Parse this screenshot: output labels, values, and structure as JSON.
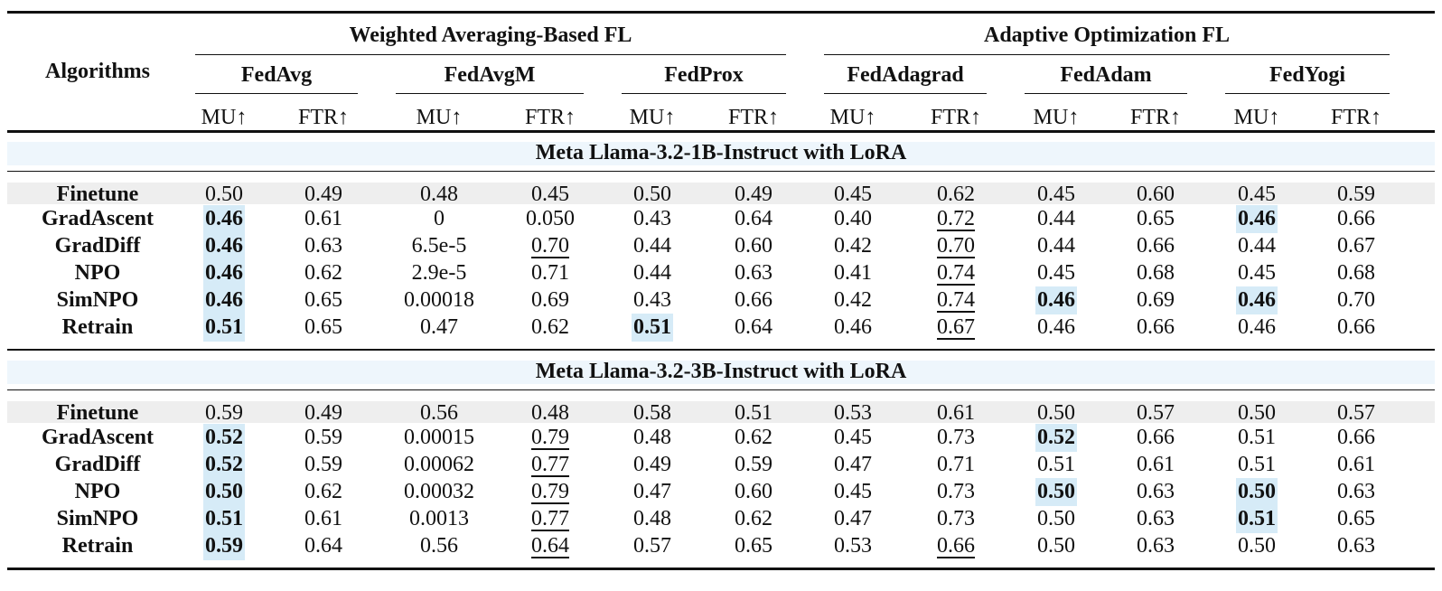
{
  "header": {
    "algorithms_label": "Algorithms",
    "groups": [
      {
        "label": "Weighted Averaging-Based FL"
      },
      {
        "label": "Adaptive Optimization FL"
      }
    ],
    "methods": [
      "FedAvg",
      "FedAvgM",
      "FedProx",
      "FedAdagrad",
      "FedAdam",
      "FedYogi"
    ],
    "metric_labels": [
      "MU↑",
      "FTR↑",
      "MU↑",
      "FTR↑",
      "MU↑",
      "FTR↑",
      "MU↑",
      "FTR↑",
      "MU↑",
      "FTR↑",
      "MU↑",
      "FTR↑"
    ]
  },
  "sections": [
    {
      "title": "Meta Llama-3.2-1B-Instruct with LoRA",
      "rows": [
        {
          "name": "Finetune",
          "values": [
            "0.50",
            "0.49",
            "0.48",
            "0.45",
            "0.50",
            "0.49",
            "0.45",
            "0.62",
            "0.45",
            "0.60",
            "0.45",
            "0.59"
          ],
          "bold": [],
          "underline": []
        },
        {
          "name": "GradAscent",
          "values": [
            "0.46",
            "0.61",
            "0",
            "0.050",
            "0.43",
            "0.64",
            "0.40",
            "0.72",
            "0.44",
            "0.65",
            "0.46",
            "0.66"
          ],
          "bold": [
            0,
            10
          ],
          "underline": [
            7
          ]
        },
        {
          "name": "GradDiff",
          "values": [
            "0.46",
            "0.63",
            "6.5e-5",
            "0.70",
            "0.44",
            "0.60",
            "0.42",
            "0.70",
            "0.44",
            "0.66",
            "0.44",
            "0.67"
          ],
          "bold": [
            0
          ],
          "underline": [
            3,
            7
          ]
        },
        {
          "name": "NPO",
          "values": [
            "0.46",
            "0.62",
            "2.9e-5",
            "0.71",
            "0.44",
            "0.63",
            "0.41",
            "0.74",
            "0.45",
            "0.68",
            "0.45",
            "0.68"
          ],
          "bold": [
            0
          ],
          "underline": [
            7
          ]
        },
        {
          "name": "SimNPO",
          "values": [
            "0.46",
            "0.65",
            "0.00018",
            "0.69",
            "0.43",
            "0.66",
            "0.42",
            "0.74",
            "0.46",
            "0.69",
            "0.46",
            "0.70"
          ],
          "bold": [
            0,
            8,
            10
          ],
          "underline": [
            7
          ]
        },
        {
          "name": "Retrain",
          "values": [
            "0.51",
            "0.65",
            "0.47",
            "0.62",
            "0.51",
            "0.64",
            "0.46",
            "0.67",
            "0.46",
            "0.66",
            "0.46",
            "0.66"
          ],
          "bold": [
            0,
            4
          ],
          "underline": [
            7
          ]
        }
      ]
    },
    {
      "title": "Meta Llama-3.2-3B-Instruct with LoRA",
      "rows": [
        {
          "name": "Finetune",
          "values": [
            "0.59",
            "0.49",
            "0.56",
            "0.48",
            "0.58",
            "0.51",
            "0.53",
            "0.61",
            "0.50",
            "0.57",
            "0.50",
            "0.57"
          ],
          "bold": [],
          "underline": []
        },
        {
          "name": "GradAscent",
          "values": [
            "0.52",
            "0.59",
            "0.00015",
            "0.79",
            "0.48",
            "0.62",
            "0.45",
            "0.73",
            "0.52",
            "0.66",
            "0.51",
            "0.66"
          ],
          "bold": [
            0,
            8
          ],
          "underline": [
            3
          ]
        },
        {
          "name": "GradDiff",
          "values": [
            "0.52",
            "0.59",
            "0.00062",
            "0.77",
            "0.49",
            "0.59",
            "0.47",
            "0.71",
            "0.51",
            "0.61",
            "0.51",
            "0.61"
          ],
          "bold": [
            0
          ],
          "underline": [
            3
          ]
        },
        {
          "name": "NPO",
          "values": [
            "0.50",
            "0.62",
            "0.00032",
            "0.79",
            "0.47",
            "0.60",
            "0.45",
            "0.73",
            "0.50",
            "0.63",
            "0.50",
            "0.63"
          ],
          "bold": [
            0,
            8,
            10
          ],
          "underline": [
            3
          ]
        },
        {
          "name": "SimNPO",
          "values": [
            "0.51",
            "0.61",
            "0.0013",
            "0.77",
            "0.48",
            "0.62",
            "0.47",
            "0.73",
            "0.50",
            "0.63",
            "0.51",
            "0.65"
          ],
          "bold": [
            0,
            10
          ],
          "underline": [
            3
          ]
        },
        {
          "name": "Retrain",
          "values": [
            "0.59",
            "0.64",
            "0.56",
            "0.64",
            "0.57",
            "0.65",
            "0.53",
            "0.66",
            "0.50",
            "0.63",
            "0.50",
            "0.63"
          ],
          "bold": [
            0
          ],
          "underline": [
            3,
            7
          ]
        }
      ]
    }
  ]
}
